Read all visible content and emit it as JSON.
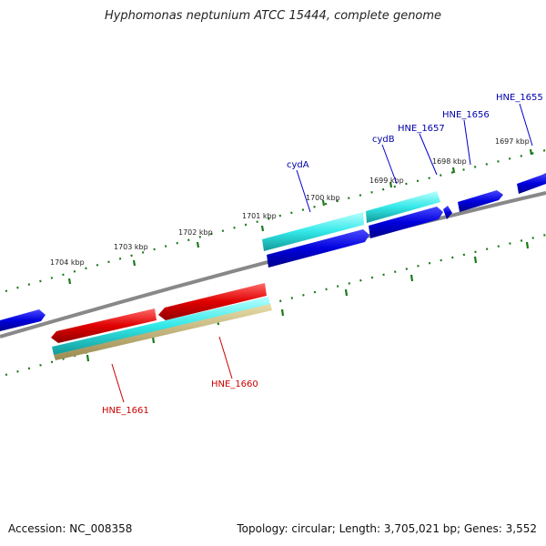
{
  "title": "Hyphomonas neptunium ATCC 15444, complete genome",
  "footer": {
    "accession": "Accession: NC_008358",
    "topology": "Topology: circular; Length: 3,705,021 bp; Genes: 3,552"
  },
  "scale_labels": [
    "1697 kbp",
    "1698 kbp",
    "1699 kbp",
    "1700 kbp",
    "1701 kbp",
    "1702 kbp",
    "1703 kbp",
    "1704 kbp"
  ],
  "gene_labels": {
    "HNE_1655": "HNE_1655",
    "HNE_1656": "HNE_1656",
    "HNE_1657": "HNE_1657",
    "cydB": "cydB",
    "cydA": "cydA",
    "HNE_1660": "HNE_1660",
    "HNE_1661": "HNE_1661"
  },
  "colors": {
    "forward_cds": "#0000dd",
    "reverse_cds": "#dd0000",
    "cds_feature": "#33dddd",
    "gene_feature": "#c8b878",
    "backbone": "#888888",
    "tick": "#1a7a1a"
  }
}
